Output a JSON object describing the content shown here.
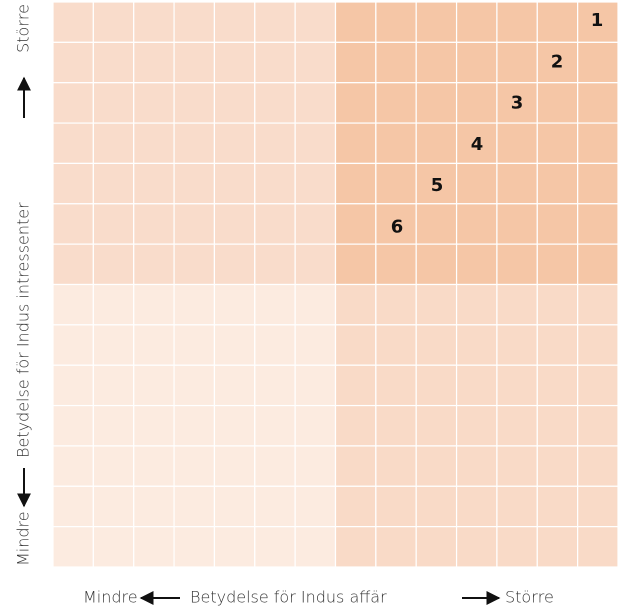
{
  "axes": {
    "x": {
      "low": "Mindre",
      "label": "Betydelse för Indus affär",
      "high": "Större"
    },
    "y": {
      "low": "Mindre",
      "label": "Betydelse för Indus intressenter",
      "high": "Större"
    }
  },
  "items": [
    "1",
    "2",
    "3",
    "4",
    "5",
    "6"
  ]
}
